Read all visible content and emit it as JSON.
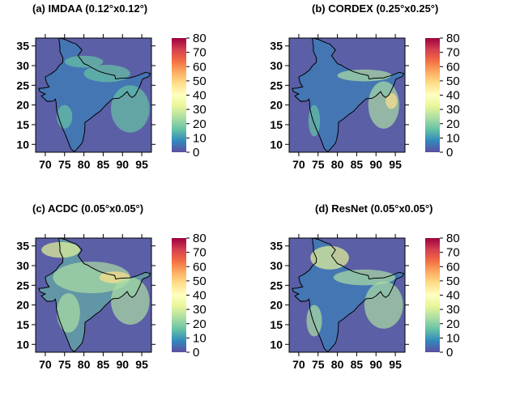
{
  "chart_data": [
    {
      "type": "heatmap",
      "title": "(a) IMDAA (0.12°x0.12°)",
      "x_ticks": [
        "70",
        "75",
        "80",
        "85",
        "90",
        "95"
      ],
      "y_ticks": [
        "35",
        "30",
        "25",
        "20",
        "15",
        "10"
      ],
      "colorbar_ticks": [
        "80",
        "70",
        "60",
        "50",
        "40",
        "30",
        "20",
        "10",
        "0"
      ],
      "xlim": [
        67.5,
        97.5
      ],
      "ylim": [
        8,
        37
      ],
      "zlim": [
        0,
        80
      ],
      "grid": false
    },
    {
      "type": "heatmap",
      "title": "(b) CORDEX (0.25°x0.25°)",
      "x_ticks": [
        "70",
        "75",
        "80",
        "85",
        "90",
        "95"
      ],
      "y_ticks": [
        "35",
        "30",
        "25",
        "20",
        "15",
        "10"
      ],
      "colorbar_ticks": [
        "80",
        "70",
        "60",
        "50",
        "40",
        "30",
        "20",
        "10",
        "0"
      ],
      "xlim": [
        67.5,
        97.5
      ],
      "ylim": [
        8,
        37
      ],
      "zlim": [
        0,
        80
      ],
      "grid": false
    },
    {
      "type": "heatmap",
      "title": "(c) ACDC (0.05°x0.05°)",
      "x_ticks": [
        "70",
        "75",
        "80",
        "85",
        "90",
        "95"
      ],
      "y_ticks": [
        "35",
        "30",
        "25",
        "20",
        "15",
        "10"
      ],
      "colorbar_ticks": [
        "80",
        "70",
        "60",
        "50",
        "40",
        "30",
        "20",
        "10",
        "0"
      ],
      "xlim": [
        67.5,
        97.5
      ],
      "ylim": [
        8,
        37
      ],
      "zlim": [
        0,
        80
      ],
      "grid": false
    },
    {
      "type": "heatmap",
      "title": "(d) ResNet (0.05°x0.05°)",
      "x_ticks": [
        "70",
        "75",
        "80",
        "85",
        "90",
        "95"
      ],
      "y_ticks": [
        "35",
        "30",
        "25",
        "20",
        "15",
        "10"
      ],
      "colorbar_ticks": [
        "80",
        "70",
        "60",
        "50",
        "40",
        "30",
        "20",
        "10",
        "0"
      ],
      "xlim": [
        67.5,
        97.5
      ],
      "ylim": [
        8,
        37
      ],
      "zlim": [
        0,
        80
      ],
      "grid": false
    }
  ],
  "colors": {
    "colormap": [
      "#5e4fa2",
      "#3288bd",
      "#66c2a5",
      "#abdda4",
      "#e6f598",
      "#ffffbf",
      "#fee08b",
      "#fdae61",
      "#f46d43",
      "#d53e4f",
      "#9e0142"
    ],
    "map_background": "#5b5fa6",
    "border_line": "#000000"
  }
}
